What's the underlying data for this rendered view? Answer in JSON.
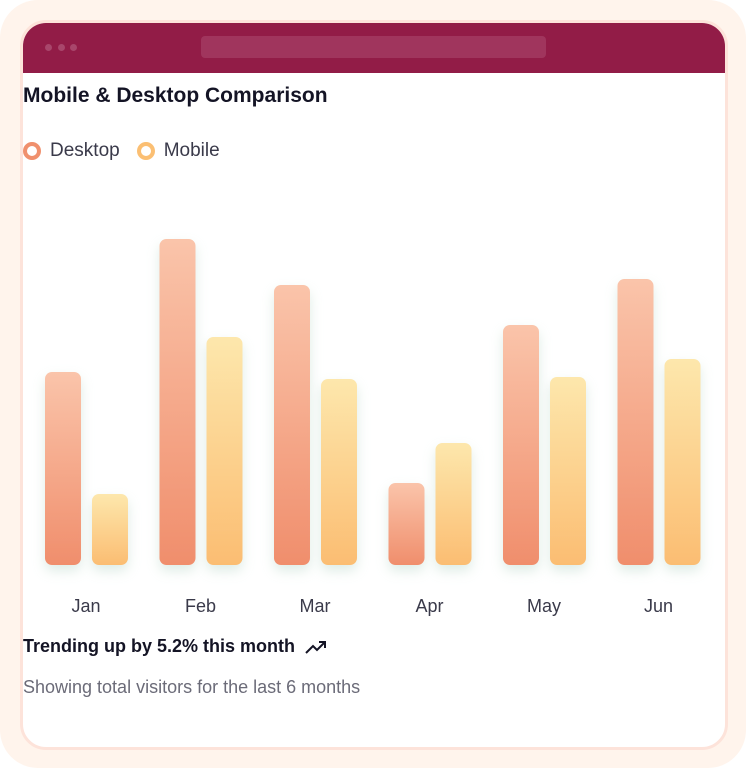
{
  "title": "Mobile & Desktop Comparison",
  "footer": {
    "trend": "Trending up by 5.2% this month",
    "trend_icon": "trending-up-icon",
    "subtitle": "Showing total visitors for the last 6 months"
  },
  "colors": {
    "desktop": "#f0906d",
    "mobile": "#fbbf73",
    "header": "#921c47"
  },
  "chart_data": {
    "type": "bar",
    "title": "Mobile & Desktop Comparison",
    "categories": [
      "Jan",
      "Feb",
      "Mar",
      "Apr",
      "May",
      "Jun"
    ],
    "series": [
      {
        "name": "Desktop",
        "values": [
          193,
          326,
          280,
          82,
          240,
          286
        ]
      },
      {
        "name": "Mobile",
        "values": [
          71,
          228,
          186,
          122,
          188,
          206
        ]
      }
    ],
    "ylim": [
      0,
      330
    ],
    "grid": false,
    "legend": "top-left",
    "xlabel": "",
    "ylabel": ""
  }
}
